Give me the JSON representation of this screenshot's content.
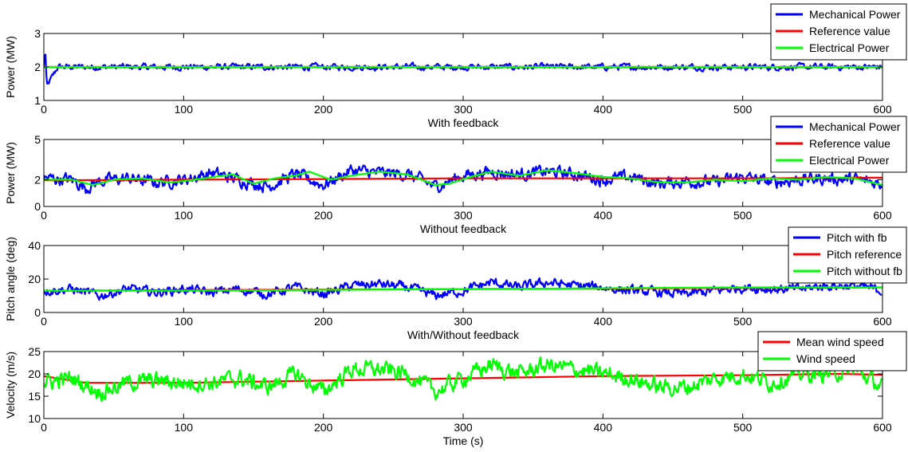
{
  "chart_data": [
    {
      "type": "line",
      "xlabel": "With feedback",
      "ylabel": "Power (MW)",
      "xlim": [
        0,
        600
      ],
      "ylim": [
        1,
        3
      ],
      "x_ticks": [
        0,
        100,
        200,
        300,
        400,
        500,
        600
      ],
      "y_ticks": [
        1,
        2,
        3
      ],
      "legend_position": "top-right, outside",
      "series": [
        {
          "name": "Mechanical Power",
          "color": "#0000ff",
          "mean": 2.0,
          "noise_band": 0.2,
          "x": [
            0,
            1,
            2,
            10,
            600
          ],
          "values": [
            2.0,
            2.6,
            1.4,
            2.0,
            2.0
          ]
        },
        {
          "name": "Reference value",
          "color": "#ff0000",
          "x": [
            0,
            600
          ],
          "values": [
            2.0,
            2.0
          ]
        },
        {
          "name": "Electrical Power",
          "color": "#00ff00",
          "x": [
            0,
            600
          ],
          "values": [
            2.0,
            2.0
          ]
        }
      ]
    },
    {
      "type": "line",
      "xlabel": "Without feedback",
      "ylabel": "Power (MW)",
      "xlim": [
        0,
        600
      ],
      "ylim": [
        0,
        5
      ],
      "x_ticks": [
        0,
        100,
        200,
        300,
        400,
        500,
        600
      ],
      "y_ticks": [
        0,
        2,
        5
      ],
      "legend_position": "top-right, outside",
      "series": [
        {
          "name": "Mechanical Power",
          "color": "#0000ff",
          "noise_band": 1.0,
          "x": [
            0,
            20,
            30,
            40,
            60,
            80,
            100,
            120,
            140,
            160,
            180,
            200,
            220,
            240,
            260,
            280,
            300,
            320,
            340,
            360,
            380,
            400,
            420,
            440,
            460,
            480,
            500,
            520,
            540,
            560,
            580,
            600
          ],
          "values": [
            2.1,
            2.0,
            1.4,
            1.9,
            2.1,
            1.8,
            2.0,
            2.5,
            2.0,
            1.5,
            2.4,
            1.6,
            2.7,
            2.5,
            2.4,
            1.5,
            2.3,
            2.6,
            2.4,
            2.6,
            2.4,
            2.0,
            2.2,
            1.7,
            1.9,
            1.8,
            2.2,
            1.8,
            2.0,
            2.1,
            2.0,
            1.7
          ]
        },
        {
          "name": "Reference value",
          "color": "#ff0000",
          "x": [
            0,
            100,
            200,
            300,
            400,
            500,
            600
          ],
          "values": [
            1.95,
            2.0,
            2.05,
            2.1,
            2.1,
            2.1,
            2.15
          ]
        },
        {
          "name": "Electrical Power",
          "color": "#00ff00",
          "x": [
            0,
            20,
            35,
            50,
            70,
            90,
            100,
            115,
            135,
            150,
            165,
            180,
            190,
            205,
            220,
            240,
            260,
            280,
            290,
            305,
            320,
            340,
            360,
            380,
            400,
            420,
            440,
            460,
            480,
            500,
            520,
            540,
            560,
            580,
            600
          ],
          "values": [
            2.0,
            2.0,
            1.6,
            2.0,
            2.1,
            1.8,
            1.9,
            2.1,
            2.4,
            1.7,
            2.1,
            2.3,
            2.6,
            2.0,
            2.3,
            2.6,
            2.4,
            1.6,
            1.7,
            2.2,
            2.6,
            2.3,
            2.7,
            2.5,
            2.2,
            2.1,
            1.8,
            1.8,
            2.0,
            1.9,
            2.1,
            2.0,
            2.2,
            2.1,
            1.6
          ]
        }
      ]
    },
    {
      "type": "line",
      "xlabel": "With/Without feedback",
      "ylabel": "Pitch angle (deg)",
      "xlim": [
        0,
        600
      ],
      "ylim": [
        0,
        40
      ],
      "x_ticks": [
        0,
        100,
        200,
        300,
        400,
        500,
        600
      ],
      "y_ticks": [
        0,
        20,
        40
      ],
      "legend_position": "top-right, outside",
      "series": [
        {
          "name": "Pitch with fb",
          "color": "#0000ff",
          "noise_band": 6,
          "x": [
            0,
            20,
            40,
            60,
            80,
            100,
            120,
            140,
            160,
            180,
            200,
            220,
            240,
            260,
            280,
            300,
            320,
            340,
            360,
            380,
            400,
            420,
            440,
            460,
            480,
            500,
            520,
            540,
            560,
            580,
            600
          ],
          "values": [
            13,
            14,
            10,
            14,
            12,
            14,
            12,
            14,
            11,
            15,
            11,
            16,
            17,
            15,
            10,
            13,
            18,
            15,
            18,
            16,
            15,
            13,
            12,
            11,
            13,
            15,
            14,
            14,
            16,
            16,
            13
          ]
        },
        {
          "name": "Pitch reference",
          "color": "#ff0000",
          "x": [
            0,
            600
          ],
          "values": [
            13,
            15
          ]
        },
        {
          "name": "Pitch without fb",
          "color": "#00ff00",
          "x": [
            0,
            100,
            200,
            300,
            400,
            500,
            600
          ],
          "values": [
            13,
            13,
            13.5,
            14,
            14.5,
            15,
            15
          ]
        }
      ]
    },
    {
      "type": "line",
      "xlabel": "Time (s)",
      "ylabel": "Velocity (m/s)",
      "xlim": [
        0,
        600
      ],
      "ylim": [
        10,
        25
      ],
      "x_ticks": [
        0,
        100,
        200,
        300,
        400,
        500,
        600
      ],
      "y_ticks": [
        10,
        15,
        20,
        25
      ],
      "legend_position": "top-right, outside",
      "series": [
        {
          "name": "Mean wind speed",
          "color": "#ff0000",
          "x": [
            0,
            30,
            100,
            200,
            300,
            400,
            500,
            570,
            600
          ],
          "values": [
            19.5,
            18,
            18,
            18.5,
            19,
            19.5,
            19.7,
            20,
            19.8
          ]
        },
        {
          "name": "Wind speed",
          "color": "#00ff00",
          "noise_band": 4,
          "x": [
            0,
            20,
            40,
            60,
            80,
            100,
            120,
            140,
            160,
            180,
            200,
            220,
            240,
            260,
            280,
            300,
            320,
            340,
            360,
            380,
            400,
            420,
            440,
            460,
            480,
            500,
            520,
            540,
            560,
            580,
            600
          ],
          "values": [
            18,
            19,
            16,
            18,
            18.5,
            18,
            18,
            19,
            17,
            20,
            16,
            21,
            21,
            20,
            16,
            19,
            22,
            20,
            22,
            21,
            20,
            19,
            17,
            17,
            19,
            20,
            18,
            20,
            20,
            21,
            17
          ]
        }
      ]
    }
  ]
}
